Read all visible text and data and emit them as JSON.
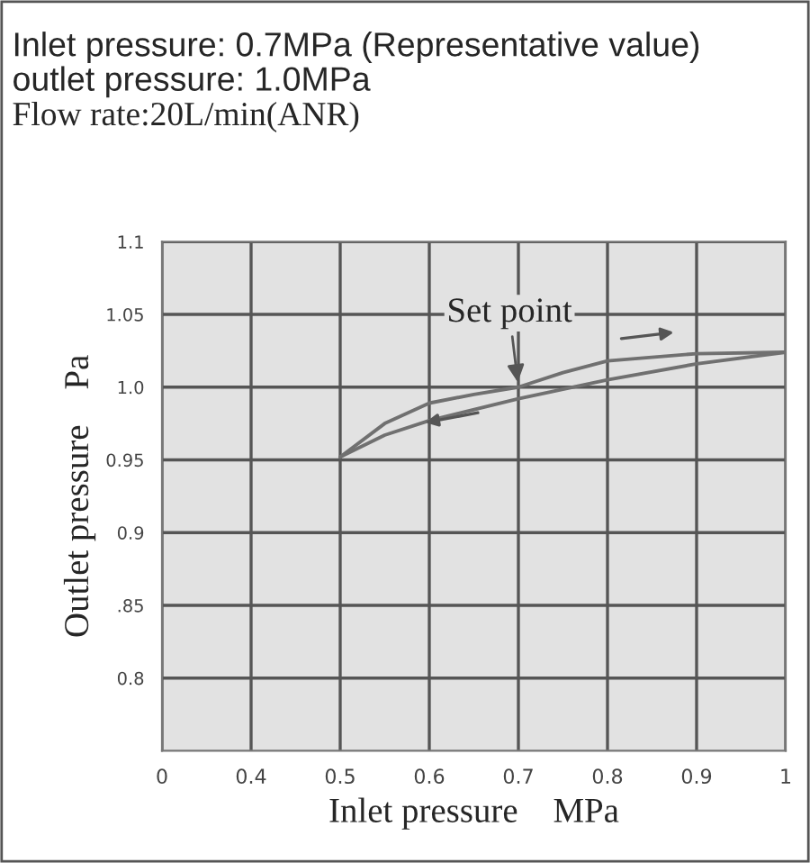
{
  "chart_data": {
    "type": "line",
    "title": "Inlet pressure: 0.7MPa (Representative value)",
    "subtitle": "outlet pressure: 1.0MPa",
    "annotations": [
      "Flow rate:20L/min(ANR)",
      {
        "text": "Set point",
        "x": 0.7,
        "y": 1.0
      }
    ],
    "xlabel": "Inlet pressure    MPa",
    "ylabel": "Outlet pressure    Pa",
    "series": [
      {
        "color": "#707070",
        "x": [
          0.5,
          0.55,
          0.6,
          0.65,
          0.7,
          0.75,
          0.8,
          0.9,
          1.0
        ],
        "values": [
          0.952,
          0.975,
          0.989,
          0.995,
          1.0,
          1.01,
          1.018,
          1.023,
          1.024
        ]
      },
      {
        "color": "#707070",
        "x": [
          1.0,
          0.9,
          0.8,
          0.7,
          0.6,
          0.55,
          0.5
        ],
        "values": [
          1.024,
          1.016,
          1.005,
          0.992,
          0.977,
          0.967,
          0.952
        ]
      }
    ],
    "xlim": [
      0.3,
      1.0
    ],
    "xticks": [
      {
        "value": 0.3,
        "label": "0"
      },
      0.4,
      0.5,
      0.6,
      0.7,
      0.8,
      0.9,
      {
        "value": 1.0,
        "label": "1"
      }
    ],
    "ylim": [
      0.75,
      1.1
    ],
    "yticks": [
      {
        "value": 0.8,
        "label": "0.8"
      },
      {
        "value": 0.85,
        "label": ".85"
      },
      0.9,
      0.95,
      {
        "value": 1.0,
        "label": "1.0"
      },
      1.05,
      1.1
    ],
    "grid": true,
    "marker": "none",
    "line_style": "solid",
    "legend": false
  }
}
